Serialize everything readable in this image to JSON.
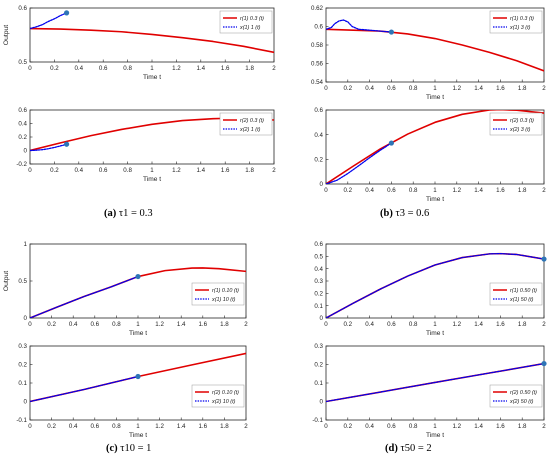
{
  "colors": {
    "reference": "#e00000",
    "estimate": "#0000ee",
    "marker": "#2e75b6",
    "axis": "#262626"
  },
  "chart_data": [
    {
      "type": "line",
      "panel": "a-top",
      "xlabel": "Time  t",
      "ylabel": "Output",
      "xlim": [
        0,
        2
      ],
      "ylim": [
        0.5,
        0.6
      ],
      "xticks": [
        "0",
        "0.2",
        "0.4",
        "0.6",
        "0.8",
        "1",
        "1.2",
        "1.4",
        "1.6",
        "1.8",
        "2"
      ],
      "yticks": [
        {
          "v": 0.5,
          "t": "0.5"
        },
        {
          "v": 0.6,
          "t": "0.6"
        }
      ],
      "legend": [
        "r(1) 0.3 (t)",
        "x(1) 1 (t)"
      ],
      "legend_position": "top-right",
      "series": [
        {
          "points": [
            [
              0,
              0.562
            ],
            [
              0.25,
              0.561
            ],
            [
              0.5,
              0.559
            ],
            [
              0.75,
              0.556
            ],
            [
              1,
              0.551
            ],
            [
              1.25,
              0.545
            ],
            [
              1.5,
              0.538
            ],
            [
              1.75,
              0.529
            ],
            [
              2,
              0.518
            ]
          ]
        },
        {
          "points": [
            [
              0,
              0.562
            ],
            [
              0.05,
              0.565
            ],
            [
              0.1,
              0.569
            ],
            [
              0.15,
              0.575
            ],
            [
              0.2,
              0.58
            ],
            [
              0.25,
              0.586
            ],
            [
              0.3,
              0.591
            ]
          ]
        }
      ],
      "marker": [
        0.3,
        0.591
      ]
    },
    {
      "type": "line",
      "panel": "a-bottom",
      "xlabel": "Time  t",
      "ylabel": "",
      "xlim": [
        0,
        2
      ],
      "ylim": [
        -0.2,
        0.6
      ],
      "xticks": [
        "0",
        "0.2",
        "0.4",
        "0.6",
        "0.8",
        "1",
        "1.2",
        "1.4",
        "1.6",
        "1.8",
        "2"
      ],
      "yticks": [
        {
          "v": -0.2,
          "t": "-0.2"
        },
        {
          "v": 0,
          "t": "0"
        },
        {
          "v": 0.2,
          "t": "0.2"
        },
        {
          "v": 0.4,
          "t": "0.4"
        },
        {
          "v": 0.6,
          "t": "0.6"
        }
      ],
      "legend": [
        "r(2) 0.3 (t)",
        "x(2) 1 (t)"
      ],
      "legend_position": "top-right",
      "series": [
        {
          "points": [
            [
              0,
              0
            ],
            [
              0.25,
              0.113
            ],
            [
              0.5,
              0.22
            ],
            [
              0.75,
              0.312
            ],
            [
              1,
              0.388
            ],
            [
              1.25,
              0.444
            ],
            [
              1.5,
              0.472
            ],
            [
              1.6,
              0.476
            ],
            [
              1.75,
              0.471
            ],
            [
              2,
              0.452
            ]
          ]
        },
        {
          "points": [
            [
              0,
              0
            ],
            [
              0.05,
              0.004
            ],
            [
              0.1,
              0.012
            ],
            [
              0.15,
              0.026
            ],
            [
              0.2,
              0.045
            ],
            [
              0.25,
              0.068
            ],
            [
              0.3,
              0.093
            ]
          ]
        }
      ],
      "marker": [
        0.3,
        0.093
      ]
    },
    {
      "type": "line",
      "panel": "b-top",
      "xlabel": "Time  t",
      "ylabel": "",
      "xlim": [
        0,
        2
      ],
      "ylim": [
        0.54,
        0.62
      ],
      "xticks": [
        "0",
        "0.2",
        "0.4",
        "0.6",
        "0.8",
        "1",
        "1.2",
        "1.4",
        "1.6",
        "1.8",
        "2"
      ],
      "yticks": [
        {
          "v": 0.54,
          "t": "0.54"
        },
        {
          "v": 0.56,
          "t": "0.56"
        },
        {
          "v": 0.58,
          "t": "0.58"
        },
        {
          "v": 0.6,
          "t": "0.6"
        },
        {
          "v": 0.62,
          "t": "0.62"
        }
      ],
      "legend": [
        "r(1) 0.3 (t)",
        "x(1) 3 (t)"
      ],
      "legend_position": "top-right",
      "series": [
        {
          "points": [
            [
              0,
              0.597
            ],
            [
              0.25,
              0.596
            ],
            [
              0.5,
              0.595
            ],
            [
              0.75,
              0.592
            ],
            [
              1,
              0.587
            ],
            [
              1.25,
              0.58
            ],
            [
              1.5,
              0.572
            ],
            [
              1.75,
              0.563
            ],
            [
              2,
              0.552
            ]
          ]
        },
        {
          "points": [
            [
              0,
              0.597
            ],
            [
              0.05,
              0.599
            ],
            [
              0.08,
              0.603
            ],
            [
              0.12,
              0.606
            ],
            [
              0.16,
              0.607
            ],
            [
              0.2,
              0.605
            ],
            [
              0.24,
              0.6
            ],
            [
              0.3,
              0.597
            ],
            [
              0.4,
              0.596
            ],
            [
              0.5,
              0.595
            ],
            [
              0.6,
              0.594
            ]
          ]
        }
      ],
      "marker": [
        0.6,
        0.594
      ]
    },
    {
      "type": "line",
      "panel": "b-bottom",
      "xlabel": "Time  t",
      "ylabel": "",
      "xlim": [
        0,
        2
      ],
      "ylim": [
        0,
        0.6
      ],
      "xticks": [
        "0",
        "0.2",
        "0.4",
        "0.6",
        "0.8",
        "1",
        "1.2",
        "1.4",
        "1.6",
        "1.8",
        "2"
      ],
      "yticks": [
        {
          "v": 0,
          "t": "0"
        },
        {
          "v": 0.2,
          "t": "0.2"
        },
        {
          "v": 0.4,
          "t": "0.4"
        },
        {
          "v": 0.6,
          "t": "0.6"
        }
      ],
      "legend": [
        "r(2) 0.3 (t)",
        "x(2) 3 (t)"
      ],
      "legend_position": "top-right",
      "series": [
        {
          "points": [
            [
              0,
              0
            ],
            [
              0.25,
              0.145
            ],
            [
              0.5,
              0.285
            ],
            [
              0.75,
              0.405
            ],
            [
              1,
              0.5
            ],
            [
              1.25,
              0.565
            ],
            [
              1.5,
              0.6
            ],
            [
              1.6,
              0.603
            ],
            [
              1.75,
              0.598
            ],
            [
              2,
              0.575
            ]
          ]
        },
        {
          "points": [
            [
              0,
              0
            ],
            [
              0.1,
              0.03
            ],
            [
              0.2,
              0.085
            ],
            [
              0.3,
              0.148
            ],
            [
              0.4,
              0.213
            ],
            [
              0.5,
              0.275
            ],
            [
              0.6,
              0.332
            ]
          ]
        }
      ],
      "marker": [
        0.6,
        0.332
      ]
    },
    {
      "type": "line",
      "panel": "c-top",
      "xlabel": "Time  t",
      "ylabel": "Output",
      "xlim": [
        0,
        2
      ],
      "ylim": [
        0,
        1
      ],
      "xticks": [
        "0",
        "0.2",
        "0.4",
        "0.6",
        "0.8",
        "1",
        "1.2",
        "1.4",
        "1.6",
        "1.8",
        "2"
      ],
      "yticks": [
        {
          "v": 0,
          "t": "0"
        },
        {
          "v": 0.5,
          "t": "0.5"
        },
        {
          "v": 1,
          "t": "1"
        }
      ],
      "legend": [
        "r(1) 0.10 (t)",
        "x(1) 10 (t)"
      ],
      "legend_position": "right",
      "series": [
        {
          "points": [
            [
              0,
              0
            ],
            [
              0.25,
              0.147
            ],
            [
              0.5,
              0.29
            ],
            [
              0.75,
              0.42
            ],
            [
              1,
              0.56
            ],
            [
              1.25,
              0.64
            ],
            [
              1.5,
              0.675
            ],
            [
              1.6,
              0.677
            ],
            [
              1.75,
              0.666
            ],
            [
              2,
              0.63
            ]
          ]
        },
        {
          "points": [
            [
              0,
              0
            ],
            [
              0.25,
              0.147
            ],
            [
              0.5,
              0.29
            ],
            [
              0.75,
              0.42
            ],
            [
              1,
              0.56
            ]
          ]
        }
      ],
      "marker": [
        1,
        0.56
      ]
    },
    {
      "type": "line",
      "panel": "c-bottom",
      "xlabel": "Time  t",
      "ylabel": "",
      "xlim": [
        0,
        2
      ],
      "ylim": [
        -0.1,
        0.3
      ],
      "xticks": [
        "0",
        "0.2",
        "0.4",
        "0.6",
        "0.8",
        "1",
        "1.2",
        "1.4",
        "1.6",
        "1.8",
        "2"
      ],
      "yticks": [
        {
          "v": -0.1,
          "t": "-0.1"
        },
        {
          "v": 0,
          "t": "0"
        },
        {
          "v": 0.1,
          "t": "0.1"
        },
        {
          "v": 0.2,
          "t": "0.2"
        },
        {
          "v": 0.3,
          "t": "0.3"
        }
      ],
      "legend": [
        "r(2) 0.10 (t)",
        "x(2) 10 (t)"
      ],
      "legend_position": "right",
      "series": [
        {
          "points": [
            [
              0,
              0
            ],
            [
              0.5,
              0.065
            ],
            [
              1,
              0.135
            ],
            [
              1.5,
              0.198
            ],
            [
              2,
              0.26
            ]
          ]
        },
        {
          "points": [
            [
              0,
              0
            ],
            [
              0.5,
              0.065
            ],
            [
              1,
              0.135
            ]
          ]
        }
      ],
      "marker": [
        1,
        0.135
      ]
    },
    {
      "type": "line",
      "panel": "d-top",
      "xlabel": "Time  t",
      "ylabel": "",
      "xlim": [
        0,
        2
      ],
      "ylim": [
        0,
        0.6
      ],
      "xticks": [
        "0",
        "0.2",
        "0.4",
        "0.6",
        "0.8",
        "1",
        "1.2",
        "1.4",
        "1.6",
        "1.8",
        "2"
      ],
      "yticks": [
        {
          "v": 0,
          "t": "0"
        },
        {
          "v": 0.1,
          "t": "0.1"
        },
        {
          "v": 0.2,
          "t": "0.2"
        },
        {
          "v": 0.3,
          "t": "0.3"
        },
        {
          "v": 0.4,
          "t": "0.4"
        },
        {
          "v": 0.5,
          "t": "0.5"
        },
        {
          "v": 0.6,
          "t": "0.6"
        }
      ],
      "legend": [
        "r(1) 0.50 (t)",
        "x(1) 50 (t)"
      ],
      "legend_position": "right",
      "series": [
        {
          "points": [
            [
              0,
              0
            ],
            [
              0.25,
              0.12
            ],
            [
              0.5,
              0.235
            ],
            [
              0.75,
              0.34
            ],
            [
              1,
              0.43
            ],
            [
              1.25,
              0.49
            ],
            [
              1.5,
              0.52
            ],
            [
              1.6,
              0.522
            ],
            [
              1.75,
              0.515
            ],
            [
              2,
              0.478
            ]
          ]
        },
        {
          "points": [
            [
              0,
              0
            ],
            [
              0.25,
              0.12
            ],
            [
              0.5,
              0.235
            ],
            [
              0.75,
              0.34
            ],
            [
              1,
              0.43
            ],
            [
              1.25,
              0.49
            ],
            [
              1.5,
              0.52
            ],
            [
              1.6,
              0.522
            ],
            [
              1.75,
              0.515
            ],
            [
              2,
              0.478
            ]
          ]
        }
      ],
      "marker": [
        2,
        0.478
      ]
    },
    {
      "type": "line",
      "panel": "d-bottom",
      "xlabel": "Time  t",
      "ylabel": "",
      "xlim": [
        0,
        2
      ],
      "ylim": [
        -0.1,
        0.3
      ],
      "xticks": [
        "0",
        "0.2",
        "0.4",
        "0.6",
        "0.8",
        "1",
        "1.2",
        "1.4",
        "1.6",
        "1.8",
        "2"
      ],
      "yticks": [
        {
          "v": -0.1,
          "t": "-0.1"
        },
        {
          "v": 0,
          "t": "0"
        },
        {
          "v": 0.1,
          "t": "0.1"
        },
        {
          "v": 0.2,
          "t": "0.2"
        },
        {
          "v": 0.3,
          "t": "0.3"
        }
      ],
      "legend": [
        "r(2) 0.50 (t)",
        "x(2) 50 (t)"
      ],
      "legend_position": "right",
      "series": [
        {
          "points": [
            [
              0,
              0
            ],
            [
              0.5,
              0.051
            ],
            [
              1,
              0.103
            ],
            [
              1.5,
              0.154
            ],
            [
              2,
              0.205
            ]
          ]
        },
        {
          "points": [
            [
              0,
              0
            ],
            [
              0.5,
              0.051
            ],
            [
              1,
              0.103
            ],
            [
              1.5,
              0.154
            ],
            [
              2,
              0.205
            ]
          ]
        }
      ],
      "marker": [
        2,
        0.205
      ]
    }
  ],
  "captions": [
    {
      "label": "(a)",
      "text": "τ1 = 0.3"
    },
    {
      "label": "(b)",
      "text": "τ3 = 0.6"
    },
    {
      "label": "(c)",
      "text": "τ10 = 1"
    },
    {
      "label": "(d)",
      "text": "τ50 = 2"
    }
  ]
}
